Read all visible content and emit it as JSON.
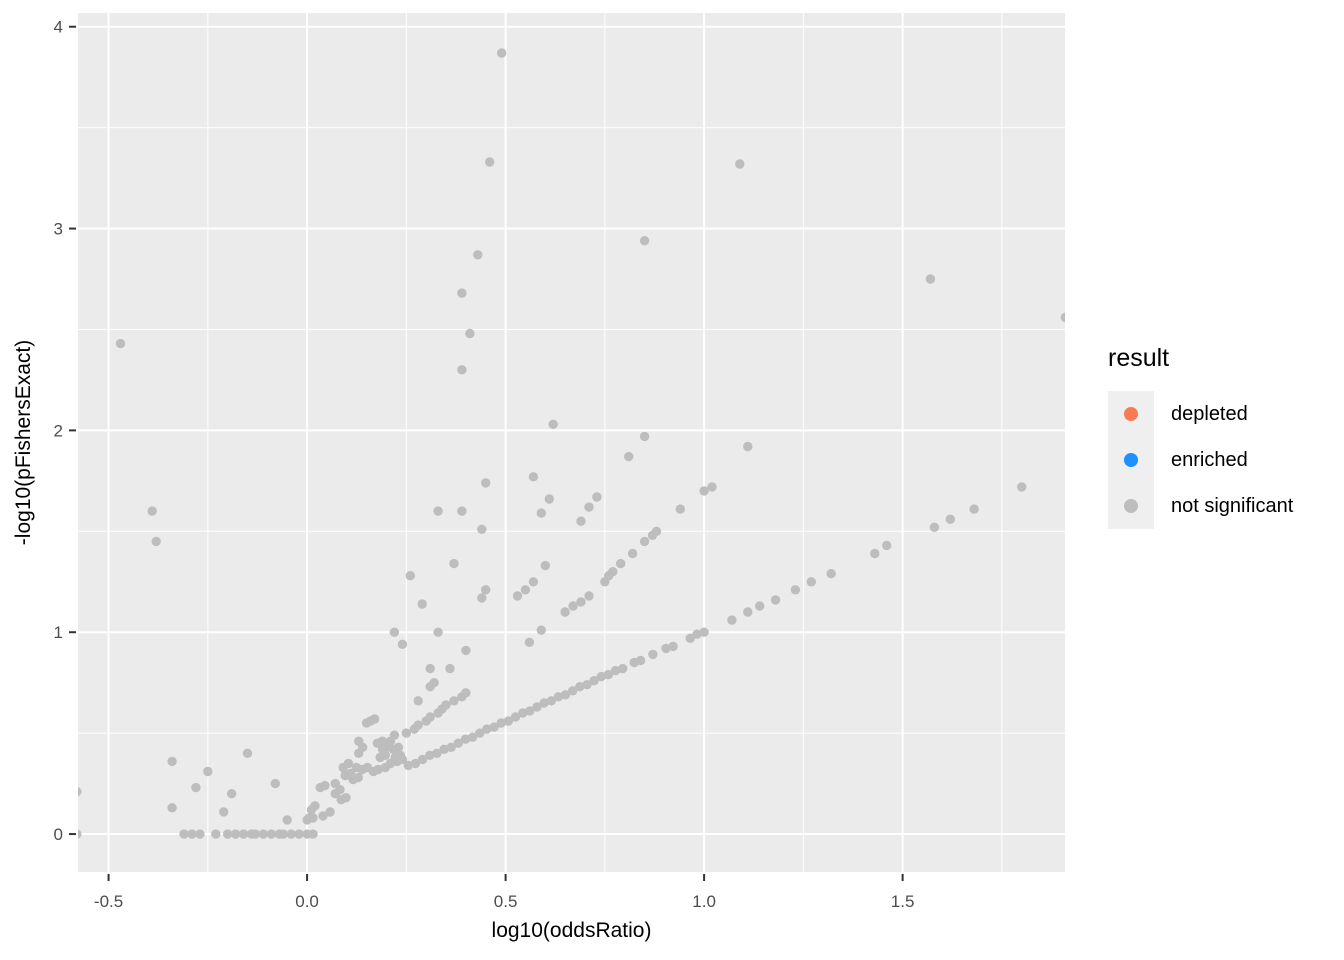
{
  "chart_data": {
    "type": "scatter",
    "title": "",
    "xlabel": "log10(oddsRatio)",
    "ylabel": "-log10(pFishersExact)",
    "xlim": [
      -0.577,
      1.909
    ],
    "ylim": [
      -0.188,
      4.068
    ],
    "x_major_ticks": [
      -0.5,
      0.0,
      0.5,
      1.0,
      1.5
    ],
    "x_tick_labels": [
      "-0.5",
      "0.0",
      "0.5",
      "1.0",
      "1.5"
    ],
    "x_minor_ticks": [
      -0.25,
      0.25,
      0.75,
      1.25,
      1.75
    ],
    "y_major_ticks": [
      0,
      1,
      2,
      3,
      4
    ],
    "y_tick_labels": [
      "0",
      "1",
      "2",
      "3",
      "4"
    ],
    "y_minor_ticks": [
      0.5,
      1.5,
      2.5,
      3.5
    ],
    "grid": true,
    "panel_bg": "#EBEBEB",
    "grid_color": "#FFFFFF",
    "tick_color": "#333333",
    "legend_position": "right",
    "legend": {
      "title": "result",
      "items": [
        {
          "label": "depleted",
          "color": "#F87B54"
        },
        {
          "label": "enriched",
          "color": "#1E90FF"
        },
        {
          "label": "not significant",
          "color": "#BDBDBD"
        }
      ]
    },
    "series": [
      {
        "name": "not significant",
        "color": "#BDBDBD",
        "points": [
          [
            0.49,
            3.87
          ],
          [
            0.46,
            3.33
          ],
          [
            1.09,
            3.32
          ],
          [
            0.85,
            2.94
          ],
          [
            0.43,
            2.87
          ],
          [
            0.39,
            2.68
          ],
          [
            0.41,
            2.48
          ],
          [
            0.39,
            2.3
          ],
          [
            1.57,
            2.75
          ],
          [
            1.91,
            2.56
          ],
          [
            -0.47,
            2.43
          ],
          [
            -0.39,
            1.6
          ],
          [
            -0.38,
            1.45
          ],
          [
            0.62,
            2.03
          ],
          [
            0.85,
            1.97
          ],
          [
            1.11,
            1.92
          ],
          [
            0.81,
            1.87
          ],
          [
            0.57,
            1.77
          ],
          [
            0.45,
            1.74
          ],
          [
            0.33,
            1.6
          ],
          [
            0.39,
            1.6
          ],
          [
            0.44,
            1.51
          ],
          [
            0.59,
            1.59
          ],
          [
            0.61,
            1.66
          ],
          [
            0.71,
            1.62
          ],
          [
            0.73,
            1.67
          ],
          [
            0.69,
            1.55
          ],
          [
            0.94,
            1.61
          ],
          [
            1.0,
            1.7
          ],
          [
            1.02,
            1.72
          ],
          [
            0.88,
            1.5
          ],
          [
            0.87,
            1.48
          ],
          [
            0.85,
            1.45
          ],
          [
            0.82,
            1.39
          ],
          [
            0.79,
            1.34
          ],
          [
            0.76,
            1.28
          ],
          [
            0.77,
            1.3
          ],
          [
            0.37,
            1.34
          ],
          [
            0.26,
            1.28
          ],
          [
            0.6,
            1.33
          ],
          [
            0.45,
            1.21
          ],
          [
            0.44,
            1.17
          ],
          [
            0.53,
            1.18
          ],
          [
            0.55,
            1.21
          ],
          [
            0.57,
            1.25
          ],
          [
            0.29,
            1.14
          ],
          [
            0.65,
            1.1
          ],
          [
            0.67,
            1.13
          ],
          [
            0.69,
            1.15
          ],
          [
            0.71,
            1.18
          ],
          [
            0.75,
            1.25
          ],
          [
            0.33,
            1.0
          ],
          [
            0.22,
            1.0
          ],
          [
            0.24,
            0.94
          ],
          [
            0.4,
            0.91
          ],
          [
            0.59,
            1.01
          ],
          [
            0.56,
            0.95
          ],
          [
            0.31,
            0.82
          ],
          [
            0.36,
            0.82
          ],
          [
            0.28,
            0.66
          ],
          [
            0.31,
            0.73
          ],
          [
            0.32,
            0.75
          ],
          [
            0.19,
            0.42
          ],
          [
            0.2,
            0.43
          ],
          [
            0.21,
            0.46
          ],
          [
            0.22,
            0.49
          ],
          [
            0.25,
            0.5
          ],
          [
            0.27,
            0.52
          ],
          [
            0.28,
            0.54
          ],
          [
            0.3,
            0.56
          ],
          [
            0.31,
            0.58
          ],
          [
            0.33,
            0.6
          ],
          [
            0.34,
            0.62
          ],
          [
            0.35,
            0.64
          ],
          [
            0.37,
            0.66
          ],
          [
            0.39,
            0.68
          ],
          [
            0.4,
            0.7
          ],
          [
            0.13,
            0.4
          ],
          [
            0.14,
            0.43
          ],
          [
            0.13,
            0.46
          ],
          [
            0.18,
            0.45
          ],
          [
            0.19,
            0.46
          ],
          [
            0.15,
            0.55
          ],
          [
            0.16,
            0.56
          ],
          [
            0.17,
            0.57
          ],
          [
            -0.58,
            0.21
          ],
          [
            -0.34,
            0.36
          ],
          [
            -0.34,
            0.13
          ],
          [
            -0.28,
            0.23
          ],
          [
            -0.25,
            0.31
          ],
          [
            -0.21,
            0.11
          ],
          [
            -0.19,
            0.2
          ],
          [
            -0.15,
            0.4
          ],
          [
            -0.08,
            0.25
          ],
          [
            -0.05,
            0.07
          ],
          [
            -0.58,
            0.0
          ],
          [
            -0.31,
            0.0
          ],
          [
            -0.29,
            0.0
          ],
          [
            -0.27,
            0.0
          ],
          [
            -0.23,
            0.0
          ],
          [
            -0.2,
            0.0
          ],
          [
            -0.18,
            0.0
          ],
          [
            -0.16,
            0.0
          ],
          [
            -0.14,
            0.0
          ],
          [
            -0.13,
            0.0
          ],
          [
            -0.11,
            0.0
          ],
          [
            -0.09,
            0.0
          ],
          [
            -0.07,
            0.0
          ],
          [
            -0.06,
            0.0
          ],
          [
            -0.04,
            0.0
          ],
          [
            -0.02,
            0.0
          ],
          [
            0.0,
            0.0
          ],
          [
            0.015,
            0.0
          ],
          [
            0.0,
            0.07
          ],
          [
            0.005,
            0.08
          ],
          [
            0.011,
            0.12
          ],
          [
            0.02,
            0.14
          ],
          [
            0.015,
            0.08
          ],
          [
            0.033,
            0.23
          ],
          [
            0.045,
            0.24
          ],
          [
            0.04,
            0.09
          ],
          [
            0.058,
            0.11
          ],
          [
            0.086,
            0.17
          ],
          [
            0.098,
            0.18
          ],
          [
            0.071,
            0.2
          ],
          [
            0.083,
            0.22
          ],
          [
            0.071,
            0.25
          ],
          [
            0.096,
            0.29
          ],
          [
            0.109,
            0.3
          ],
          [
            0.124,
            0.33
          ],
          [
            0.091,
            0.33
          ],
          [
            0.104,
            0.35
          ],
          [
            0.116,
            0.27
          ],
          [
            0.129,
            0.28
          ],
          [
            0.139,
            0.32
          ],
          [
            0.152,
            0.33
          ],
          [
            0.167,
            0.31
          ],
          [
            0.179,
            0.32
          ],
          [
            0.184,
            0.38
          ],
          [
            0.197,
            0.39
          ],
          [
            0.197,
            0.33
          ],
          [
            0.21,
            0.35
          ],
          [
            0.177,
            0.45
          ],
          [
            0.222,
            0.38
          ],
          [
            0.235,
            0.39
          ],
          [
            0.227,
            0.36
          ],
          [
            0.24,
            0.37
          ],
          [
            0.217,
            0.42
          ],
          [
            0.23,
            0.43
          ],
          [
            0.255,
            0.34
          ],
          [
            0.273,
            0.35
          ],
          [
            0.291,
            0.37
          ],
          [
            0.309,
            0.39
          ],
          [
            0.327,
            0.4
          ],
          [
            0.345,
            0.42
          ],
          [
            0.363,
            0.43
          ],
          [
            0.381,
            0.45
          ],
          [
            0.399,
            0.47
          ],
          [
            0.417,
            0.48
          ],
          [
            0.435,
            0.5
          ],
          [
            0.453,
            0.52
          ],
          [
            0.471,
            0.53
          ],
          [
            0.489,
            0.55
          ],
          [
            0.507,
            0.56
          ],
          [
            0.525,
            0.58
          ],
          [
            0.543,
            0.6
          ],
          [
            0.561,
            0.61
          ],
          [
            0.579,
            0.63
          ],
          [
            0.597,
            0.65
          ],
          [
            0.615,
            0.66
          ],
          [
            0.633,
            0.68
          ],
          [
            0.651,
            0.69
          ],
          [
            0.669,
            0.71
          ],
          [
            0.687,
            0.73
          ],
          [
            0.705,
            0.74
          ],
          [
            0.723,
            0.76
          ],
          [
            0.741,
            0.78
          ],
          [
            0.759,
            0.79
          ],
          [
            0.777,
            0.81
          ],
          [
            0.795,
            0.82
          ],
          [
            0.824,
            0.85
          ],
          [
            0.84,
            0.86
          ],
          [
            0.871,
            0.89
          ],
          [
            0.904,
            0.92
          ],
          [
            0.922,
            0.93
          ],
          [
            0.965,
            0.97
          ],
          [
            0.982,
            0.99
          ],
          [
            1.0,
            1.0
          ],
          [
            1.07,
            1.06
          ],
          [
            1.11,
            1.1
          ],
          [
            1.14,
            1.13
          ],
          [
            1.18,
            1.16
          ],
          [
            1.23,
            1.21
          ],
          [
            1.27,
            1.25
          ],
          [
            1.32,
            1.29
          ],
          [
            1.43,
            1.39
          ],
          [
            1.46,
            1.43
          ],
          [
            1.58,
            1.52
          ],
          [
            1.62,
            1.56
          ],
          [
            1.68,
            1.61
          ],
          [
            1.8,
            1.72
          ]
        ]
      },
      {
        "name": "depleted",
        "color": "#F87B54",
        "points": []
      },
      {
        "name": "enriched",
        "color": "#1E90FF",
        "points": []
      }
    ]
  }
}
